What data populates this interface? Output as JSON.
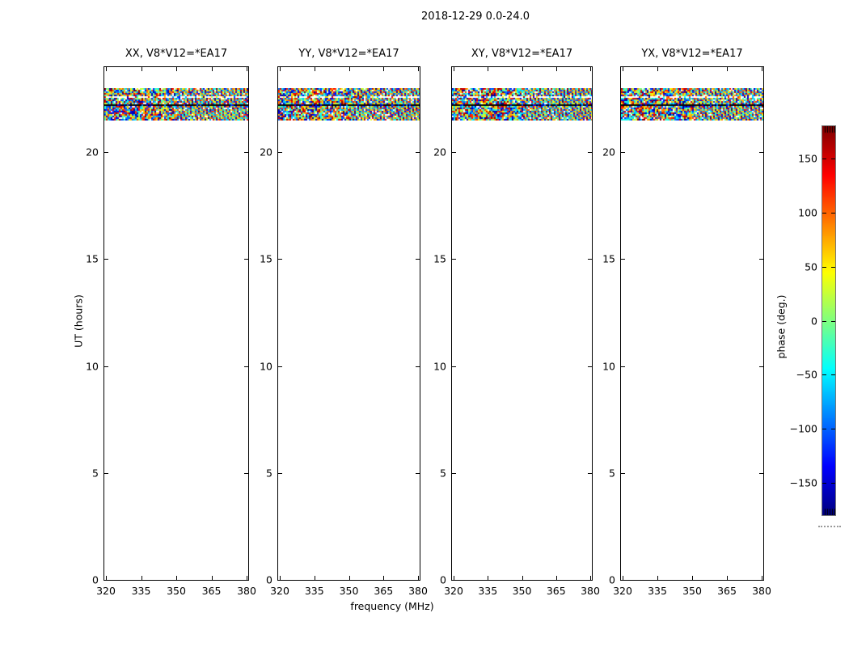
{
  "figure": {
    "suptitle": "2018-12-29 0.0-24.0",
    "background_color": "#ffffff",
    "frame_color": "#000000"
  },
  "panels": [
    {
      "id": "XX",
      "title": "XX, V8*V12=*EA17"
    },
    {
      "id": "YY",
      "title": "YY, V8*V12=*EA17"
    },
    {
      "id": "XY",
      "title": "XY, V8*V12=*EA17"
    },
    {
      "id": "YX",
      "title": "YX, V8*V12=*EA17"
    }
  ],
  "axes": {
    "x": {
      "label": "frequency (MHz)",
      "ticks": [
        320,
        335,
        350,
        365,
        380
      ],
      "range": [
        320,
        381
      ]
    },
    "y": {
      "label": "UT (hours)",
      "ticks": [
        0,
        5,
        10,
        15,
        20
      ],
      "range": [
        0,
        24
      ]
    }
  },
  "colorbar": {
    "label": "phase (deg.)",
    "range": [
      -180,
      180
    ],
    "colormap": "jet",
    "ticks": [
      {
        "value": 150,
        "label": "150"
      },
      {
        "value": 100,
        "label": "100"
      },
      {
        "value": 50,
        "label": "50"
      },
      {
        "value": 0,
        "label": "0"
      },
      {
        "value": -50,
        "label": "−50"
      },
      {
        "value": -100,
        "label": "−100"
      },
      {
        "value": -150,
        "label": "−150"
      }
    ]
  },
  "chart_data": {
    "type": "heatmap",
    "suptitle": "2018-12-29 0.0-24.0",
    "subplots": [
      {
        "title": "XX, V8*V12=*EA17",
        "correlation": "XX",
        "baseline": "V8*V12=*EA17"
      },
      {
        "title": "YY, V8*V12=*EA17",
        "correlation": "YY",
        "baseline": "V8*V12=*EA17"
      },
      {
        "title": "XY, V8*V12=*EA17",
        "correlation": "XY",
        "baseline": "V8*V12=*EA17"
      },
      {
        "title": "YX, V8*V12=*EA17",
        "correlation": "YX",
        "baseline": "V8*V12=*EA17"
      }
    ],
    "xlabel": "frequency (MHz)",
    "ylabel": "UT (hours)",
    "xlim": [
      320,
      381
    ],
    "ylim": [
      0,
      24
    ],
    "xticks": [
      320,
      335,
      350,
      365,
      380
    ],
    "yticks": [
      0,
      5,
      10,
      15,
      20
    ],
    "value_axis": {
      "label": "phase (deg.)",
      "range": [
        -180,
        180
      ],
      "ticks": [
        -150,
        -100,
        -50,
        0,
        50,
        100,
        150
      ],
      "colormap": "jet"
    },
    "data_extent": {
      "ut_hours": [
        21.4,
        23.0
      ],
      "frequency_mhz": [
        320,
        381
      ]
    },
    "data_description": "Interferometric phase vs time and frequency. Data exist only in a horizontal band between UT 21.4 and 23.0 across the whole 320-381 MHz range, appearing as pseudo-random multicolor (jet colormap) phase noise spanning -180 to +180 deg, with diagonal fringe stripes toward the upper-frequency half, a thin white horizontal gap near UT 22.6 and a dark horizontal row near UT 22.2. The remainder of the 0-24 h axis is blank in all four correlation panels.",
    "legend": "none",
    "grid": false
  }
}
